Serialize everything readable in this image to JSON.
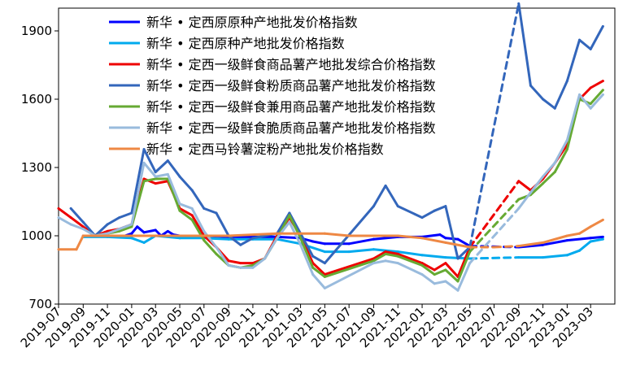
{
  "chart_data": {
    "type": "line",
    "title": "",
    "xlabel": "",
    "ylabel": "",
    "ylim": [
      700,
      2000
    ],
    "yticks": [
      700,
      1000,
      1300,
      1600,
      1900
    ],
    "x_tick_labels": [
      "2019-07",
      "2019-09",
      "2019-11",
      "2020-01",
      "2020-03",
      "2020-05",
      "2020-07",
      "2020-09",
      "2020-11",
      "2021-01",
      "2021-03",
      "2021-05",
      "2021-07",
      "2021-09",
      "2021-11",
      "2022-01",
      "2022-03",
      "2022-05",
      "2022-07",
      "2022-09",
      "2022-11",
      "2023-01",
      "2023-03"
    ],
    "grid": false,
    "legend_position": "top",
    "gap": {
      "start": "2022-05",
      "end": "2022-09",
      "note_style": "dashed"
    },
    "series": [
      {
        "name": "新华 • 定西原原种产地批发价格指数",
        "color": "#0000ff",
        "points": [
          [
            "2019-09-01",
            1000
          ],
          [
            "2019-11-01",
            1000
          ],
          [
            "2019-12-15",
            1000
          ],
          [
            "2020-01-01",
            1010
          ],
          [
            "2020-01-15",
            1040
          ],
          [
            "2020-02-01",
            1015
          ],
          [
            "2020-03-01",
            1025
          ],
          [
            "2020-03-15",
            1000
          ],
          [
            "2020-04-01",
            1020
          ],
          [
            "2020-04-15",
            1005
          ],
          [
            "2020-05-01",
            1000
          ],
          [
            "2020-07-01",
            1000
          ],
          [
            "2020-09-01",
            995
          ],
          [
            "2020-11-01",
            995
          ],
          [
            "2021-01-01",
            995
          ],
          [
            "2021-03-01",
            990
          ],
          [
            "2021-04-01",
            975
          ],
          [
            "2021-05-01",
            965
          ],
          [
            "2021-07-01",
            965
          ],
          [
            "2021-09-01",
            985
          ],
          [
            "2021-11-01",
            995
          ],
          [
            "2022-01-01",
            995
          ],
          [
            "2022-02-15",
            1005
          ],
          [
            "2022-03-01",
            990
          ],
          [
            "2022-04-01",
            985
          ],
          [
            "2022-05-01",
            955
          ],
          [
            "2022-09-01",
            950
          ],
          [
            "2022-11-01",
            960
          ],
          [
            "2023-01-01",
            980
          ],
          [
            "2023-03-01",
            990
          ],
          [
            "2023-04-01",
            995
          ]
        ]
      },
      {
        "name": "新华 • 定西原种产地批发价格指数",
        "color": "#00aaee",
        "points": [
          [
            "2019-09-01",
            995
          ],
          [
            "2019-11-01",
            995
          ],
          [
            "2020-01-01",
            990
          ],
          [
            "2020-02-01",
            970
          ],
          [
            "2020-03-01",
            1000
          ],
          [
            "2020-05-01",
            990
          ],
          [
            "2020-07-01",
            990
          ],
          [
            "2020-09-01",
            985
          ],
          [
            "2020-11-01",
            985
          ],
          [
            "2021-01-01",
            985
          ],
          [
            "2021-03-01",
            965
          ],
          [
            "2021-05-01",
            930
          ],
          [
            "2021-07-01",
            930
          ],
          [
            "2021-09-01",
            940
          ],
          [
            "2021-11-01",
            930
          ],
          [
            "2022-01-01",
            915
          ],
          [
            "2022-03-01",
            905
          ],
          [
            "2022-05-01",
            900
          ],
          [
            "2022-09-01",
            905
          ],
          [
            "2022-11-01",
            905
          ],
          [
            "2023-01-01",
            915
          ],
          [
            "2023-02-01",
            935
          ],
          [
            "2023-03-01",
            975
          ],
          [
            "2023-04-01",
            985
          ]
        ]
      },
      {
        "name": "新华 • 定西一级鲜食商品薯产地批发综合价格指数",
        "color": "#ee0000",
        "points": [
          [
            "2019-07-01",
            1120
          ],
          [
            "2019-08-01",
            1080
          ],
          [
            "2019-09-01",
            1040
          ],
          [
            "2019-10-01",
            1000
          ],
          [
            "2019-11-01",
            1020
          ],
          [
            "2019-12-01",
            1030
          ],
          [
            "2020-01-01",
            1050
          ],
          [
            "2020-02-01",
            1250
          ],
          [
            "2020-03-01",
            1230
          ],
          [
            "2020-04-01",
            1240
          ],
          [
            "2020-05-01",
            1120
          ],
          [
            "2020-06-01",
            1090
          ],
          [
            "2020-07-01",
            1000
          ],
          [
            "2020-08-01",
            950
          ],
          [
            "2020-09-01",
            890
          ],
          [
            "2020-10-01",
            880
          ],
          [
            "2020-11-01",
            880
          ],
          [
            "2020-12-01",
            900
          ],
          [
            "2021-01-01",
            1000
          ],
          [
            "2021-02-01",
            1080
          ],
          [
            "2021-03-01",
            1000
          ],
          [
            "2021-04-01",
            880
          ],
          [
            "2021-05-01",
            830
          ],
          [
            "2021-09-01",
            900
          ],
          [
            "2021-10-01",
            930
          ],
          [
            "2021-11-01",
            920
          ],
          [
            "2022-01-01",
            880
          ],
          [
            "2022-02-01",
            850
          ],
          [
            "2022-03-01",
            880
          ],
          [
            "2022-04-01",
            820
          ],
          [
            "2022-05-01",
            950
          ],
          [
            "2022-09-01",
            1240
          ],
          [
            "2022-10-01",
            1200
          ],
          [
            "2022-11-01",
            1250
          ],
          [
            "2022-12-01",
            1320
          ],
          [
            "2023-01-01",
            1400
          ],
          [
            "2023-02-01",
            1600
          ],
          [
            "2023-03-01",
            1650
          ],
          [
            "2023-04-01",
            1680
          ]
        ]
      },
      {
        "name": "新华 • 定西一级鲜食粉质商品薯产地批发价格指数",
        "color": "#3366bb",
        "points": [
          [
            "2019-08-01",
            1120
          ],
          [
            "2019-09-01",
            1060
          ],
          [
            "2019-10-01",
            1000
          ],
          [
            "2019-11-01",
            1050
          ],
          [
            "2019-12-01",
            1080
          ],
          [
            "2020-01-01",
            1100
          ],
          [
            "2020-02-01",
            1380
          ],
          [
            "2020-03-01",
            1280
          ],
          [
            "2020-04-01",
            1330
          ],
          [
            "2020-05-01",
            1260
          ],
          [
            "2020-06-01",
            1200
          ],
          [
            "2020-07-01",
            1120
          ],
          [
            "2020-08-01",
            1100
          ],
          [
            "2020-09-01",
            1000
          ],
          [
            "2020-10-01",
            960
          ],
          [
            "2020-11-01",
            990
          ],
          [
            "2020-12-01",
            1000
          ],
          [
            "2021-01-01",
            1010
          ],
          [
            "2021-02-01",
            1100
          ],
          [
            "2021-03-01",
            1010
          ],
          [
            "2021-04-01",
            910
          ],
          [
            "2021-05-01",
            880
          ],
          [
            "2021-09-01",
            1130
          ],
          [
            "2021-10-01",
            1220
          ],
          [
            "2021-11-01",
            1130
          ],
          [
            "2022-01-01",
            1080
          ],
          [
            "2022-02-01",
            1110
          ],
          [
            "2022-03-01",
            1130
          ],
          [
            "2022-04-01",
            900
          ],
          [
            "2022-05-01",
            950
          ],
          [
            "2022-09-01",
            2020
          ],
          [
            "2022-10-01",
            1660
          ],
          [
            "2022-11-01",
            1600
          ],
          [
            "2022-12-01",
            1560
          ],
          [
            "2023-01-01",
            1680
          ],
          [
            "2023-02-01",
            1860
          ],
          [
            "2023-03-01",
            1820
          ],
          [
            "2023-04-01",
            1920
          ]
        ]
      },
      {
        "name": "新华 • 定西一级鲜食兼用商品薯产地批发价格指数",
        "color": "#66aa33",
        "points": [
          [
            "2019-10-01",
            1000
          ],
          [
            "2019-11-01",
            1010
          ],
          [
            "2019-12-01",
            1020
          ],
          [
            "2020-01-01",
            1040
          ],
          [
            "2020-02-01",
            1240
          ],
          [
            "2020-03-01",
            1250
          ],
          [
            "2020-04-01",
            1250
          ],
          [
            "2020-05-01",
            1110
          ],
          [
            "2020-06-01",
            1070
          ],
          [
            "2020-07-01",
            980
          ],
          [
            "2020-08-01",
            920
          ],
          [
            "2020-09-01",
            870
          ],
          [
            "2020-10-01",
            860
          ],
          [
            "2020-11-01",
            870
          ],
          [
            "2020-12-01",
            900
          ],
          [
            "2021-01-01",
            990
          ],
          [
            "2021-02-01",
            1090
          ],
          [
            "2021-03-01",
            990
          ],
          [
            "2021-04-01",
            860
          ],
          [
            "2021-05-01",
            820
          ],
          [
            "2021-09-01",
            890
          ],
          [
            "2021-10-01",
            920
          ],
          [
            "2021-11-01",
            910
          ],
          [
            "2022-01-01",
            870
          ],
          [
            "2022-02-01",
            830
          ],
          [
            "2022-03-01",
            850
          ],
          [
            "2022-04-01",
            800
          ],
          [
            "2022-05-01",
            930
          ],
          [
            "2022-09-01",
            1160
          ],
          [
            "2022-10-01",
            1180
          ],
          [
            "2022-11-01",
            1230
          ],
          [
            "2022-12-01",
            1280
          ],
          [
            "2023-01-01",
            1380
          ],
          [
            "2023-02-01",
            1600
          ],
          [
            "2023-03-01",
            1580
          ],
          [
            "2023-04-01",
            1640
          ]
        ]
      },
      {
        "name": "新华 • 定西一级鲜食脆质商品薯产地批发价格指数",
        "color": "#99bbdd",
        "points": [
          [
            "2019-07-01",
            1080
          ],
          [
            "2019-08-01",
            1050
          ],
          [
            "2019-09-01",
            1030
          ],
          [
            "2019-10-01",
            1000
          ],
          [
            "2019-11-01",
            1010
          ],
          [
            "2019-12-01",
            1030
          ],
          [
            "2020-01-01",
            1050
          ],
          [
            "2020-02-01",
            1320
          ],
          [
            "2020-03-01",
            1260
          ],
          [
            "2020-04-01",
            1270
          ],
          [
            "2020-05-01",
            1140
          ],
          [
            "2020-06-01",
            1120
          ],
          [
            "2020-07-01",
            1020
          ],
          [
            "2020-08-01",
            950
          ],
          [
            "2020-09-01",
            870
          ],
          [
            "2020-10-01",
            860
          ],
          [
            "2020-11-01",
            860
          ],
          [
            "2020-12-01",
            900
          ],
          [
            "2021-01-01",
            990
          ],
          [
            "2021-02-01",
            1060
          ],
          [
            "2021-03-01",
            960
          ],
          [
            "2021-04-01",
            830
          ],
          [
            "2021-05-01",
            770
          ],
          [
            "2021-09-01",
            880
          ],
          [
            "2021-10-01",
            890
          ],
          [
            "2021-11-01",
            880
          ],
          [
            "2022-01-01",
            830
          ],
          [
            "2022-02-01",
            790
          ],
          [
            "2022-03-01",
            800
          ],
          [
            "2022-04-01",
            760
          ],
          [
            "2022-05-01",
            880
          ],
          [
            "2022-09-01",
            1120
          ],
          [
            "2022-10-01",
            1190
          ],
          [
            "2022-11-01",
            1260
          ],
          [
            "2022-12-01",
            1320
          ],
          [
            "2023-01-01",
            1420
          ],
          [
            "2023-02-01",
            1620
          ],
          [
            "2023-03-01",
            1560
          ],
          [
            "2023-04-01",
            1620
          ]
        ]
      },
      {
        "name": "新华 • 定西马铃薯淀粉产地批发价格指数",
        "color": "#ee8844",
        "points": [
          [
            "2019-07-01",
            940
          ],
          [
            "2019-08-15",
            940
          ],
          [
            "2019-09-01",
            1000
          ],
          [
            "2019-11-01",
            1000
          ],
          [
            "2020-01-01",
            1000
          ],
          [
            "2020-05-01",
            1000
          ],
          [
            "2020-09-01",
            1000
          ],
          [
            "2021-01-01",
            1010
          ],
          [
            "2021-03-01",
            1010
          ],
          [
            "2021-05-01",
            1010
          ],
          [
            "2021-07-01",
            1000
          ],
          [
            "2021-09-01",
            1000
          ],
          [
            "2021-11-01",
            1000
          ],
          [
            "2022-01-01",
            990
          ],
          [
            "2022-03-01",
            970
          ],
          [
            "2022-05-01",
            950
          ],
          [
            "2022-07-01",
            950
          ],
          [
            "2022-09-01",
            955
          ],
          [
            "2022-11-01",
            970
          ],
          [
            "2023-01-01",
            1000
          ],
          [
            "2023-02-01",
            1010
          ],
          [
            "2023-03-01",
            1040
          ],
          [
            "2023-04-01",
            1070
          ]
        ]
      }
    ]
  }
}
